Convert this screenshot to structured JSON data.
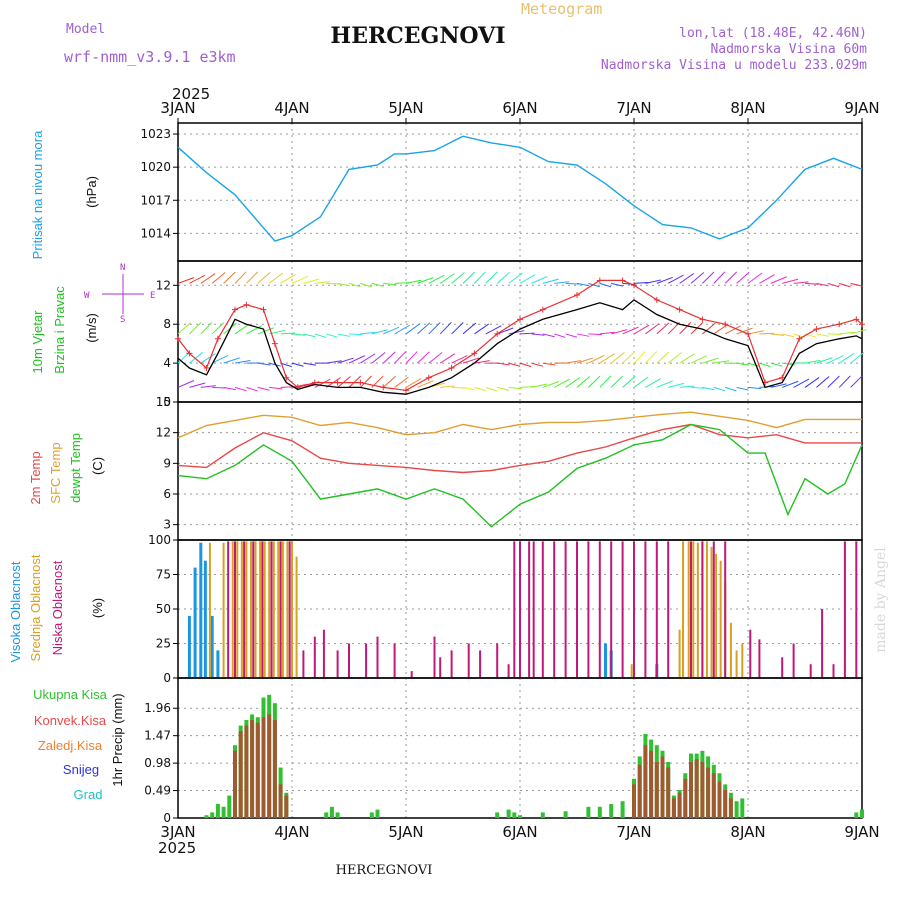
{
  "header": {
    "model_label": "Model",
    "model_name": "wrf-nmm_v3.9.1 e3km",
    "product": "Meteogram",
    "station": "HERCEGNOVI",
    "coords": "lon,lat (18.48E, 42.46N)",
    "elevation": "Nadmorska Visina 60m",
    "model_elevation": "Nadmorska Visina u modelu 233.029m"
  },
  "footer": {
    "station": "HERCEGNOVI",
    "watermark": "made by Angel"
  },
  "colors": {
    "pressure": "#1aa3e8",
    "wind_speed": "#000000",
    "gust": "#e83030",
    "temp2m": "#e84848",
    "sfc": "#e0a030",
    "dewpt": "#22c022",
    "high_cloud": "#1a96e0",
    "mid_cloud": "#d8a020",
    "low_cloud": "#c01878",
    "total_precip": "#30c030",
    "conv_precip": "#a05a30"
  },
  "time_axis": {
    "year": "2025",
    "labels": [
      "3JAN",
      "4JAN",
      "5JAN",
      "6JAN",
      "7JAN",
      "8JAN",
      "9JAN"
    ]
  },
  "chart_data": [
    {
      "type": "line",
      "name": "pressure",
      "ylabel": "(hPa)",
      "side_label": "Pritisak na nivou mora",
      "ylim": [
        1011.5,
        1024
      ],
      "yticks": [
        "1014",
        "1017",
        "1020",
        "1023"
      ],
      "x": [
        0,
        0.25,
        0.5,
        0.75,
        0.85,
        1,
        1.25,
        1.5,
        1.75,
        1.9,
        2,
        2.25,
        2.5,
        2.75,
        3,
        3.25,
        3.5,
        3.75,
        4,
        4.25,
        4.5,
        4.75,
        5,
        5.25,
        5.5,
        5.75,
        6
      ],
      "values": [
        1021.8,
        1019.5,
        1017.5,
        1014.5,
        1013.3,
        1013.8,
        1015.5,
        1019.8,
        1020.2,
        1021.2,
        1021.2,
        1021.5,
        1022.8,
        1022.2,
        1021.8,
        1020.5,
        1020.2,
        1018.5,
        1016.5,
        1014.8,
        1014.5,
        1013.5,
        1014.5,
        1017,
        1019.8,
        1020.8,
        1019.8
      ]
    },
    {
      "type": "line",
      "name": "wind",
      "ylabel": "(m/s)",
      "side_labels": [
        "10m Vjetar",
        "Brzina i Pravac"
      ],
      "compass": {
        "n": "N",
        "w": "W",
        "e": "E",
        "s": "S"
      },
      "ylim": [
        0,
        14.5
      ],
      "yticks": [
        "0",
        "4",
        "8",
        "12"
      ],
      "series": [
        {
          "name": "speed",
          "x": [
            0,
            0.1,
            0.25,
            0.35,
            0.5,
            0.6,
            0.75,
            0.85,
            0.95,
            1.05,
            1.2,
            1.4,
            1.6,
            1.8,
            2,
            2.2,
            2.4,
            2.6,
            2.8,
            3,
            3.2,
            3.5,
            3.7,
            3.9,
            4.0,
            4.2,
            4.4,
            4.6,
            4.8,
            5,
            5.15,
            5.3,
            5.45,
            5.6,
            5.8,
            5.95,
            6
          ],
          "values": [
            4.5,
            3.5,
            2.8,
            5,
            8.5,
            8,
            7.5,
            4,
            2,
            1.3,
            1.8,
            1.5,
            1.5,
            1,
            0.8,
            1.5,
            2.5,
            4,
            6,
            7.5,
            8.5,
            9.5,
            10.2,
            9.5,
            10.5,
            9,
            8,
            7.5,
            6.5,
            5.8,
            1.5,
            2,
            5,
            6,
            6.5,
            6.8,
            6.5
          ]
        },
        {
          "name": "gust",
          "x": [
            0,
            0.1,
            0.25,
            0.35,
            0.5,
            0.6,
            0.75,
            0.85,
            0.95,
            1.05,
            1.2,
            1.4,
            1.6,
            1.8,
            2,
            2.2,
            2.4,
            2.6,
            2.8,
            3,
            3.2,
            3.5,
            3.7,
            3.9,
            4.0,
            4.2,
            4.4,
            4.6,
            4.8,
            5,
            5.15,
            5.3,
            5.45,
            5.6,
            5.8,
            5.95,
            6
          ],
          "values": [
            6.5,
            5,
            3.5,
            6.5,
            9.5,
            10,
            9.5,
            6,
            2.5,
            1.5,
            2,
            2,
            2,
            1.5,
            1.2,
            2.5,
            3.5,
            5,
            7,
            8.5,
            9.5,
            11,
            12.5,
            12.5,
            12,
            10.5,
            9.5,
            8.5,
            8,
            7,
            2,
            2.5,
            6.5,
            7.5,
            8,
            8.5,
            8
          ]
        }
      ]
    },
    {
      "type": "line",
      "name": "temperature",
      "ylabel": "(C)",
      "side_labels": [
        "2m Temp",
        "SFC Temp",
        "dewpt Temp"
      ],
      "ylim": [
        1.5,
        15
      ],
      "yticks": [
        "3",
        "6",
        "9",
        "12",
        "15"
      ],
      "series": [
        {
          "name": "2m",
          "x": [
            0,
            0.25,
            0.5,
            0.75,
            1,
            1.25,
            1.5,
            1.75,
            2,
            2.25,
            2.5,
            2.75,
            3,
            3.25,
            3.5,
            3.75,
            4,
            4.25,
            4.5,
            4.75,
            5,
            5.25,
            5.5,
            5.75,
            6
          ],
          "values": [
            8.8,
            8.6,
            10.5,
            12,
            11.2,
            9.5,
            9,
            8.8,
            8.6,
            8.3,
            8.1,
            8.3,
            8.8,
            9.2,
            10,
            10.6,
            11.5,
            12.3,
            12.8,
            11.8,
            11.5,
            11.8,
            11,
            11,
            11
          ]
        },
        {
          "name": "sfc",
          "x": [
            0,
            0.25,
            0.5,
            0.75,
            1,
            1.25,
            1.5,
            1.75,
            2,
            2.25,
            2.5,
            2.75,
            3,
            3.25,
            3.5,
            3.75,
            4,
            4.25,
            4.5,
            4.75,
            5,
            5.25,
            5.5,
            5.75,
            6
          ],
          "values": [
            11.5,
            12.7,
            13.2,
            13.7,
            13.5,
            12.7,
            13,
            12.5,
            11.8,
            12,
            12.8,
            12.3,
            12.8,
            13,
            13,
            13.2,
            13.5,
            13.8,
            14,
            13.6,
            13.2,
            12.5,
            13.3,
            13.3,
            13.3
          ]
        },
        {
          "name": "dewpt",
          "x": [
            0,
            0.25,
            0.5,
            0.75,
            1,
            1.25,
            1.5,
            1.75,
            2,
            2.25,
            2.5,
            2.75,
            3,
            3.25,
            3.5,
            3.75,
            4,
            4.25,
            4.5,
            4.75,
            5,
            5.15,
            5.35,
            5.5,
            5.7,
            5.85,
            6
          ],
          "values": [
            7.8,
            7.5,
            8.8,
            10.8,
            9.2,
            5.5,
            6,
            6.5,
            5.5,
            6.5,
            5.5,
            2.8,
            5,
            6.2,
            8.5,
            9.5,
            10.8,
            11.3,
            12.8,
            12.3,
            10,
            10,
            4,
            7.5,
            6,
            7,
            10.8
          ]
        }
      ]
    },
    {
      "type": "bar",
      "name": "clouds",
      "ylabel": "(%)",
      "side_labels": [
        "Visoka Oblacnost",
        "Srednja Oblacnost",
        "Niska Oblacnost"
      ],
      "ylim": [
        0,
        100
      ],
      "yticks": [
        "0",
        "25",
        "50",
        "75",
        "100"
      ],
      "series": [
        {
          "name": "high",
          "x": [
            0.1,
            0.15,
            0.2,
            0.24,
            0.3,
            0.35,
            3.75,
            3.8,
            4.2
          ],
          "values": [
            45,
            80,
            98,
            85,
            45,
            20,
            25,
            20,
            10
          ]
        },
        {
          "name": "mid",
          "x": [
            0.28,
            0.4,
            0.48,
            0.52,
            0.56,
            0.6,
            0.64,
            0.68,
            0.72,
            0.76,
            0.8,
            0.84,
            0.88,
            0.92,
            0.96,
            1.0,
            1.04,
            3.98,
            4.4,
            4.43,
            4.48,
            4.52,
            4.56,
            4.6,
            4.64,
            4.68,
            4.72,
            4.76,
            4.8,
            4.85,
            4.9,
            4.95
          ],
          "values": [
            98,
            98,
            99,
            99,
            99,
            99,
            99,
            99,
            99,
            99,
            99,
            99,
            99,
            99,
            99,
            99,
            88,
            10,
            35,
            99,
            99,
            99,
            98,
            99,
            99,
            95,
            90,
            85,
            70,
            40,
            20,
            25
          ]
        },
        {
          "name": "low",
          "x": [
            0.44,
            0.5,
            0.58,
            0.66,
            0.74,
            0.82,
            0.9,
            0.98,
            1.1,
            1.2,
            1.28,
            1.4,
            1.5,
            1.65,
            1.75,
            1.9,
            2.05,
            2.25,
            2.3,
            2.4,
            2.55,
            2.65,
            2.8,
            2.9,
            2.95,
            3.0,
            3.08,
            3.12,
            3.2,
            3.3,
            3.4,
            3.5,
            3.6,
            3.7,
            3.8,
            3.9,
            4.0,
            4.1,
            4.2,
            4.3,
            4.5,
            4.6,
            4.7,
            4.8,
            5.02,
            5.1,
            5.3,
            5.4,
            5.55,
            5.65,
            5.75,
            5.85,
            5.95
          ],
          "values": [
            99,
            99,
            99,
            99,
            99,
            99,
            99,
            99,
            20,
            30,
            35,
            20,
            25,
            25,
            30,
            25,
            5,
            30,
            15,
            20,
            25,
            20,
            25,
            10,
            99,
            99,
            99,
            99,
            99,
            99,
            99,
            99,
            99,
            99,
            99,
            99,
            99,
            99,
            99,
            99,
            99,
            99,
            99,
            99,
            35,
            28,
            15,
            25,
            10,
            50,
            10,
            99,
            99
          ]
        }
      ]
    },
    {
      "type": "bar",
      "name": "precipitation",
      "ylabel": "1hr Precip (mm)",
      "legend": [
        "Ukupna Kisa",
        "Konvek.Kisa",
        "Zaledj.Kisa",
        "Snijeg",
        "Grad"
      ],
      "ylim": [
        0,
        2.5
      ],
      "yticks": [
        "0",
        "0.49",
        "0.98",
        "1.47",
        "1.96"
      ],
      "series": [
        {
          "name": "total",
          "x": [
            0.25,
            0.3,
            0.35,
            0.4,
            0.45,
            0.5,
            0.55,
            0.6,
            0.65,
            0.7,
            0.75,
            0.8,
            0.85,
            0.9,
            0.95,
            1.3,
            1.35,
            1.4,
            1.7,
            1.75,
            2.8,
            2.9,
            2.95,
            3.0,
            3.2,
            3.4,
            3.6,
            3.7,
            3.8,
            3.9,
            4.0,
            4.05,
            4.1,
            4.15,
            4.2,
            4.25,
            4.3,
            4.35,
            4.4,
            4.45,
            4.5,
            4.55,
            4.6,
            4.65,
            4.7,
            4.75,
            4.8,
            4.85,
            4.9,
            4.95,
            5.95,
            6.0
          ],
          "values": [
            0.05,
            0.1,
            0.25,
            0.2,
            0.4,
            1.3,
            1.65,
            1.75,
            1.85,
            1.8,
            2.15,
            2.2,
            2.05,
            0.9,
            0.45,
            0.1,
            0.2,
            0.1,
            0.1,
            0.15,
            0.1,
            0.15,
            0.1,
            0.05,
            0.1,
            0.12,
            0.2,
            0.2,
            0.25,
            0.3,
            0.7,
            1.1,
            1.5,
            1.4,
            1.3,
            1.2,
            1.0,
            0.4,
            0.5,
            0.8,
            1.15,
            1.15,
            1.2,
            1.1,
            0.95,
            0.8,
            0.6,
            0.45,
            0.3,
            0.35,
            0.1,
            0.15
          ]
        },
        {
          "name": "convective",
          "x": [
            0.5,
            0.55,
            0.6,
            0.65,
            0.7,
            0.75,
            0.8,
            0.85,
            0.9,
            0.95,
            4.0,
            4.05,
            4.1,
            4.15,
            4.2,
            4.25,
            4.3,
            4.35,
            4.4,
            4.45,
            4.5,
            4.55,
            4.6,
            4.65,
            4.7,
            4.75,
            4.8,
            4.85
          ],
          "values": [
            1.2,
            1.55,
            1.65,
            1.75,
            1.7,
            1.8,
            1.85,
            1.75,
            0.6,
            0.4,
            0.6,
            0.95,
            1.3,
            1.2,
            1.0,
            1.1,
            0.9,
            0.35,
            0.45,
            0.7,
            1.0,
            1.05,
            1.0,
            0.9,
            0.8,
            0.65,
            0.5,
            0.35
          ]
        }
      ]
    }
  ]
}
